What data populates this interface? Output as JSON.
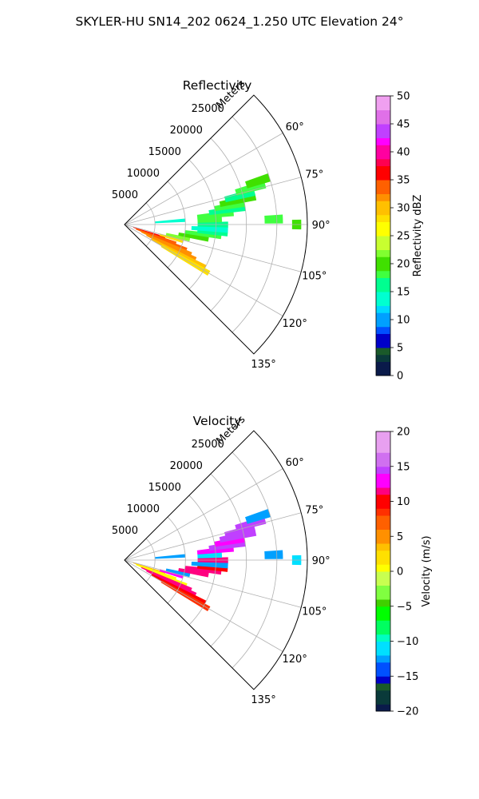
{
  "figure": {
    "suptitle": "SKYLER-HU  SN14_202  0624_1.250 UTC Elevation 24°"
  },
  "chart_data": [
    {
      "type": "heatmap",
      "projection": "polar-sector",
      "title": "Reflectivity",
      "radial_label": "Meters",
      "radial_ticks": [
        5000,
        10000,
        15000,
        20000,
        25000
      ],
      "radial_tick_labels": [
        "5000",
        "10000",
        "15000",
        "20000",
        "25000"
      ],
      "rlim": [
        0,
        30000
      ],
      "azimuth_ticks": [
        60,
        75,
        90,
        105,
        120,
        135
      ],
      "azimuth_tick_labels": [
        "60°",
        "75°",
        "90°",
        "105°",
        "120°",
        "135°"
      ],
      "azimuth_range_deg": [
        45,
        135
      ],
      "grid": true,
      "colorbar": {
        "label": "Reflectivity dBZ",
        "range": [
          0,
          50
        ],
        "ticks": [
          0,
          5,
          10,
          15,
          20,
          25,
          30,
          35,
          40,
          45,
          50
        ],
        "tick_labels": [
          "0",
          "5",
          "10",
          "15",
          "20",
          "25",
          "30",
          "35",
          "40",
          "45",
          "50"
        ],
        "colormap": [
          [
            0,
            "#0a1a4a"
          ],
          [
            2,
            "#0a3a3a"
          ],
          [
            4,
            "#1a5a2a"
          ],
          [
            5,
            "#0000c8"
          ],
          [
            7,
            "#0050ff"
          ],
          [
            9,
            "#00a0ff"
          ],
          [
            11,
            "#00d8ff"
          ],
          [
            13,
            "#00ffd0"
          ],
          [
            15,
            "#00ff90"
          ],
          [
            17,
            "#40ff40"
          ],
          [
            19,
            "#40e000"
          ],
          [
            21,
            "#80ff30"
          ],
          [
            23,
            "#c8ff30"
          ],
          [
            25,
            "#ffff00"
          ],
          [
            27,
            "#ffe000"
          ],
          [
            29,
            "#ffc000"
          ],
          [
            31,
            "#ff9000"
          ],
          [
            33,
            "#ff6000"
          ],
          [
            35,
            "#ff0000"
          ],
          [
            37,
            "#ff0050"
          ],
          [
            39,
            "#ff00a0"
          ],
          [
            41,
            "#ff00ff"
          ],
          [
            43,
            "#c040ff"
          ],
          [
            45,
            "#e070e8"
          ],
          [
            47,
            "#f0a0f0"
          ],
          [
            50,
            "#fce0fc"
          ]
        ]
      },
      "echoes": [
        {
          "az": 108,
          "r": [
            1500,
            7000
          ],
          "value": 36
        },
        {
          "az": 110,
          "r": [
            2000,
            9000
          ],
          "value": 34
        },
        {
          "az": 112,
          "r": [
            2000,
            11000
          ],
          "value": 33
        },
        {
          "az": 114,
          "r": [
            3000,
            12000
          ],
          "value": 32
        },
        {
          "az": 116,
          "r": [
            4000,
            13000
          ],
          "value": 31
        },
        {
          "az": 118,
          "r": [
            5000,
            15000
          ],
          "value": 30
        },
        {
          "az": 120,
          "r": [
            7000,
            16000
          ],
          "value": 27
        },
        {
          "az": 106,
          "r": [
            6000,
            10000
          ],
          "value": 28
        },
        {
          "az": 103,
          "r": [
            7000,
            11000
          ],
          "value": 22
        },
        {
          "az": 100,
          "r": [
            9000,
            14000
          ],
          "value": 19
        },
        {
          "az": 97,
          "r": [
            10000,
            16000
          ],
          "value": 17
        },
        {
          "az": 95,
          "r": [
            12000,
            17000
          ],
          "value": 16
        },
        {
          "az": 93,
          "r": [
            11000,
            17000
          ],
          "value": 14
        },
        {
          "az": 90,
          "r": [
            12000,
            17000
          ],
          "value": 15
        },
        {
          "az": 87,
          "r": [
            12000,
            16000
          ],
          "value": 18
        },
        {
          "az": 84,
          "r": [
            12000,
            18000
          ],
          "value": 17
        },
        {
          "az": 82,
          "r": [
            14000,
            20000
          ],
          "value": 16
        },
        {
          "az": 80,
          "r": [
            15000,
            20000
          ],
          "value": 18
        },
        {
          "az": 78,
          "r": [
            16000,
            22000
          ],
          "value": 19
        },
        {
          "az": 76,
          "r": [
            17000,
            22000
          ],
          "value": 16
        },
        {
          "az": 74,
          "r": [
            19000,
            24000
          ],
          "value": 18
        },
        {
          "az": 72,
          "r": [
            21000,
            25000
          ],
          "value": 20
        },
        {
          "az": 86,
          "r": [
            5000,
            10000
          ],
          "value": 13
        },
        {
          "az": 88,
          "r": [
            23000,
            26000
          ],
          "value": 18
        },
        {
          "az": 90,
          "r": [
            27500,
            29000
          ],
          "value": 19
        }
      ]
    },
    {
      "type": "heatmap",
      "projection": "polar-sector",
      "title": "Velocity",
      "radial_label": "Meters",
      "radial_ticks": [
        5000,
        10000,
        15000,
        20000,
        25000
      ],
      "radial_tick_labels": [
        "5000",
        "10000",
        "15000",
        "20000",
        "25000"
      ],
      "rlim": [
        0,
        30000
      ],
      "azimuth_ticks": [
        60,
        75,
        90,
        105,
        120,
        135
      ],
      "azimuth_tick_labels": [
        "60°",
        "75°",
        "90°",
        "105°",
        "120°",
        "135°"
      ],
      "azimuth_range_deg": [
        45,
        135
      ],
      "grid": true,
      "colorbar": {
        "label": "Velocity (m/s)",
        "range": [
          -20,
          20
        ],
        "ticks": [
          -20,
          -15,
          -10,
          -5,
          0,
          5,
          10,
          15,
          20
        ],
        "tick_labels": [
          "−20",
          "−15",
          "−10",
          "−5",
          "0",
          "5",
          "10",
          "15",
          "20"
        ],
        "colormap": [
          [
            -20,
            "#0a1a4a"
          ],
          [
            -18.5,
            "#0a3a3a"
          ],
          [
            -17,
            "#1a5a2a"
          ],
          [
            -16,
            "#0000c8"
          ],
          [
            -14.5,
            "#0050ff"
          ],
          [
            -13,
            "#00a0ff"
          ],
          [
            -11.5,
            "#00e0ff"
          ],
          [
            -10,
            "#00ffc0"
          ],
          [
            -8.5,
            "#00ff60"
          ],
          [
            -7,
            "#00ff00"
          ],
          [
            -5,
            "#40d000"
          ],
          [
            -3.5,
            "#80ff40"
          ],
          [
            -2,
            "#c8ff50"
          ],
          [
            0,
            "#ffff00"
          ],
          [
            1.5,
            "#ffe000"
          ],
          [
            3,
            "#ffc000"
          ],
          [
            4.5,
            "#ff9000"
          ],
          [
            6,
            "#ff6000"
          ],
          [
            8,
            "#ff3000"
          ],
          [
            9.5,
            "#ff0000"
          ],
          [
            11,
            "#ff0080"
          ],
          [
            12.5,
            "#ff00ff"
          ],
          [
            14,
            "#c040ff"
          ],
          [
            15.5,
            "#d070f0"
          ],
          [
            17,
            "#e8a0f0"
          ],
          [
            20,
            "#fce0fc"
          ]
        ]
      },
      "echoes": [
        {
          "az": 108,
          "r": [
            1500,
            7000
          ],
          "value": 3
        },
        {
          "az": 110,
          "r": [
            2000,
            9000
          ],
          "value": 1
        },
        {
          "az": 112,
          "r": [
            2000,
            11000
          ],
          "value": 0
        },
        {
          "az": 114,
          "r": [
            3000,
            12000
          ],
          "value": 11
        },
        {
          "az": 116,
          "r": [
            4000,
            13000
          ],
          "value": 12
        },
        {
          "az": 118,
          "r": [
            5000,
            15000
          ],
          "value": 10
        },
        {
          "az": 120,
          "r": [
            7000,
            16000
          ],
          "value": 9
        },
        {
          "az": 106,
          "r": [
            6000,
            10000
          ],
          "value": 13
        },
        {
          "az": 103,
          "r": [
            7000,
            11000
          ],
          "value": -12
        },
        {
          "az": 100,
          "r": [
            9000,
            14000
          ],
          "value": 11
        },
        {
          "az": 97,
          "r": [
            10000,
            16000
          ],
          "value": 12
        },
        {
          "az": 95,
          "r": [
            12000,
            17000
          ],
          "value": 10
        },
        {
          "az": 93,
          "r": [
            11000,
            17000
          ],
          "value": -12
        },
        {
          "az": 90,
          "r": [
            12000,
            17000
          ],
          "value": 11
        },
        {
          "az": 87,
          "r": [
            12000,
            16000
          ],
          "value": -11
        },
        {
          "az": 84,
          "r": [
            12000,
            18000
          ],
          "value": 13
        },
        {
          "az": 82,
          "r": [
            14000,
            20000
          ],
          "value": 14
        },
        {
          "az": 80,
          "r": [
            15000,
            20000
          ],
          "value": 13
        },
        {
          "az": 78,
          "r": [
            16000,
            22000
          ],
          "value": 14
        },
        {
          "az": 76,
          "r": [
            17000,
            22000
          ],
          "value": 15
        },
        {
          "az": 74,
          "r": [
            19000,
            24000
          ],
          "value": 14
        },
        {
          "az": 72,
          "r": [
            21000,
            25000
          ],
          "value": -12
        },
        {
          "az": 86,
          "r": [
            5000,
            10000
          ],
          "value": -12
        },
        {
          "az": 88,
          "r": [
            23000,
            26000
          ],
          "value": -12
        },
        {
          "az": 90,
          "r": [
            27500,
            29000
          ],
          "value": -11
        }
      ]
    }
  ]
}
